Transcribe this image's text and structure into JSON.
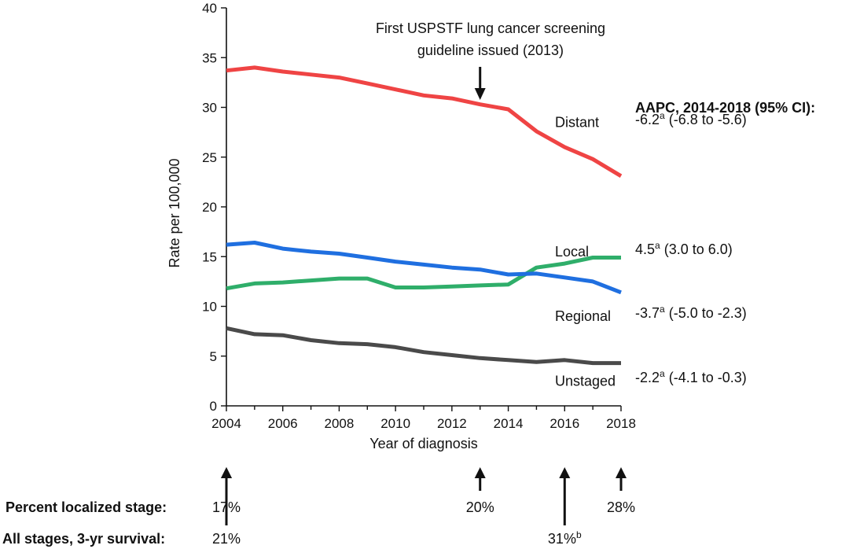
{
  "chart_data": {
    "type": "line",
    "title": "",
    "xlabel": "Year of diagnosis",
    "ylabel": "Rate per 100,000",
    "xlim": [
      2004,
      2018
    ],
    "ylim": [
      0,
      40
    ],
    "x_ticks": [
      2004,
      2006,
      2008,
      2010,
      2012,
      2014,
      2016,
      2018
    ],
    "x_minor_ticks_every": 1,
    "y_ticks": [
      0,
      5,
      10,
      15,
      20,
      25,
      30,
      35,
      40
    ],
    "grid": false,
    "x": [
      2004,
      2005,
      2006,
      2007,
      2008,
      2009,
      2010,
      2011,
      2012,
      2013,
      2014,
      2015,
      2016,
      2017,
      2018
    ],
    "series": [
      {
        "name": "Distant",
        "color": "#ef4444",
        "values": [
          33.7,
          34.0,
          33.6,
          33.3,
          33.0,
          32.4,
          31.8,
          31.2,
          30.9,
          30.3,
          29.8,
          27.6,
          26.0,
          24.8,
          23.1
        ],
        "label_position": {
          "x": 2015.7,
          "y": 28.5
        },
        "aapc": {
          "value": "-6.2",
          "sup": "a",
          "ci": "(-6.8 to -5.6)"
        }
      },
      {
        "name": "Local",
        "color": "#2fae6a",
        "values": [
          11.8,
          12.3,
          12.4,
          12.6,
          12.8,
          12.8,
          11.9,
          11.9,
          12.0,
          12.1,
          12.2,
          13.9,
          14.3,
          14.9,
          14.9
        ],
        "label_position": {
          "x": 2015.7,
          "y": 15.5
        },
        "aapc": {
          "value": "4.5",
          "sup": "a",
          "ci": "(3.0 to 6.0)"
        }
      },
      {
        "name": "Regional",
        "color": "#1f6fe0",
        "values": [
          16.2,
          16.4,
          15.8,
          15.5,
          15.3,
          14.9,
          14.5,
          14.2,
          13.9,
          13.7,
          13.2,
          13.3,
          12.9,
          12.5,
          11.4
        ],
        "label_position": {
          "x": 2015.7,
          "y": 9.0
        },
        "aapc": {
          "value": "-3.7",
          "sup": "a",
          "ci": "(-5.0 to -2.3)"
        }
      },
      {
        "name": "Unstaged",
        "color": "#4a4a4a",
        "values": [
          7.8,
          7.2,
          7.1,
          6.6,
          6.3,
          6.2,
          5.9,
          5.4,
          5.1,
          4.8,
          4.6,
          4.4,
          4.6,
          4.3,
          4.3
        ],
        "label_position": {
          "x": 2015.7,
          "y": 2.5
        },
        "aapc": {
          "value": "-2.2",
          "sup": "a",
          "ci": "(-4.1 to -0.3)"
        }
      }
    ],
    "annotations": [
      {
        "text_lines": [
          "First USPSTF lung cancer screening",
          "guideline issued (2013)"
        ],
        "x": 2013,
        "arrow": "down"
      }
    ],
    "aapc_title": "AAPC, 2014-2018 (95% CI):",
    "bottom_rows": {
      "localized_label": "Percent localized stage:",
      "survival_label": "All stages, 3-yr survival:",
      "markers": [
        {
          "year": 2004,
          "row": "localized",
          "text": "17%",
          "sup": ""
        },
        {
          "year": 2013,
          "row": "localized",
          "text": "20%",
          "sup": ""
        },
        {
          "year": 2018,
          "row": "localized",
          "text": "28%",
          "sup": ""
        },
        {
          "year": 2004,
          "row": "survival",
          "text": "21%",
          "sup": ""
        },
        {
          "year": 2016,
          "row": "survival",
          "text": "31%",
          "sup": "b"
        }
      ]
    }
  }
}
